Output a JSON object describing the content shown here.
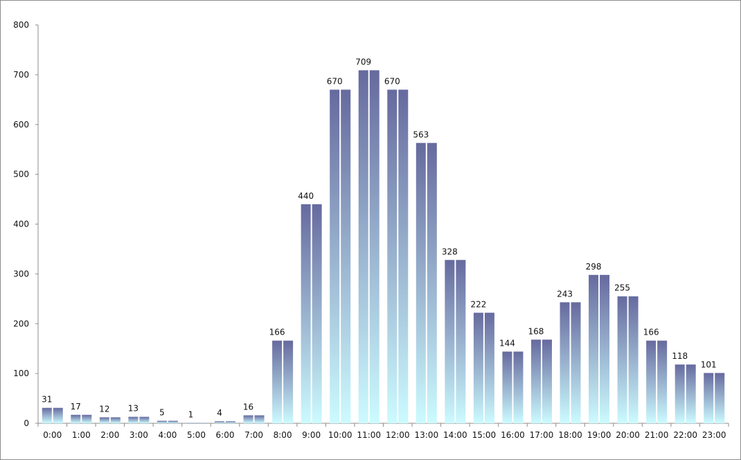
{
  "chart_data": {
    "type": "bar",
    "title": "",
    "xlabel": "",
    "ylabel": "",
    "ylim": [
      0,
      800
    ],
    "yticks": [
      0,
      100,
      200,
      300,
      400,
      500,
      600,
      700,
      800
    ],
    "categories": [
      "0:00",
      "1:00",
      "2:00",
      "3:00",
      "4:00",
      "5:00",
      "6:00",
      "7:00",
      "8:00",
      "9:00",
      "10:00",
      "11:00",
      "12:00",
      "13:00",
      "14:00",
      "15:00",
      "16:00",
      "17:00",
      "18:00",
      "19:00",
      "20:00",
      "21:00",
      "22:00",
      "23:00"
    ],
    "series": [
      {
        "name": "",
        "values": [
          31,
          17,
          12,
          13,
          5,
          1,
          4,
          16,
          166,
          440,
          670,
          709,
          670,
          563,
          328,
          222,
          144,
          168,
          243,
          298,
          255,
          166,
          118,
          101
        ]
      }
    ],
    "data_labels": [
      "31",
      "17",
      "12",
      "13",
      "5",
      "1",
      "4",
      "16",
      "166",
      "440",
      "670",
      "709",
      "670",
      "563",
      "328",
      "222",
      "144",
      "168",
      "243",
      "298",
      "255",
      "166",
      "118",
      "101"
    ],
    "grid": false,
    "legend": "none"
  },
  "colors": {
    "bar_top": "#666a9e",
    "bar_bottom": "#ccfbff",
    "axis": "#8c8c8c"
  }
}
